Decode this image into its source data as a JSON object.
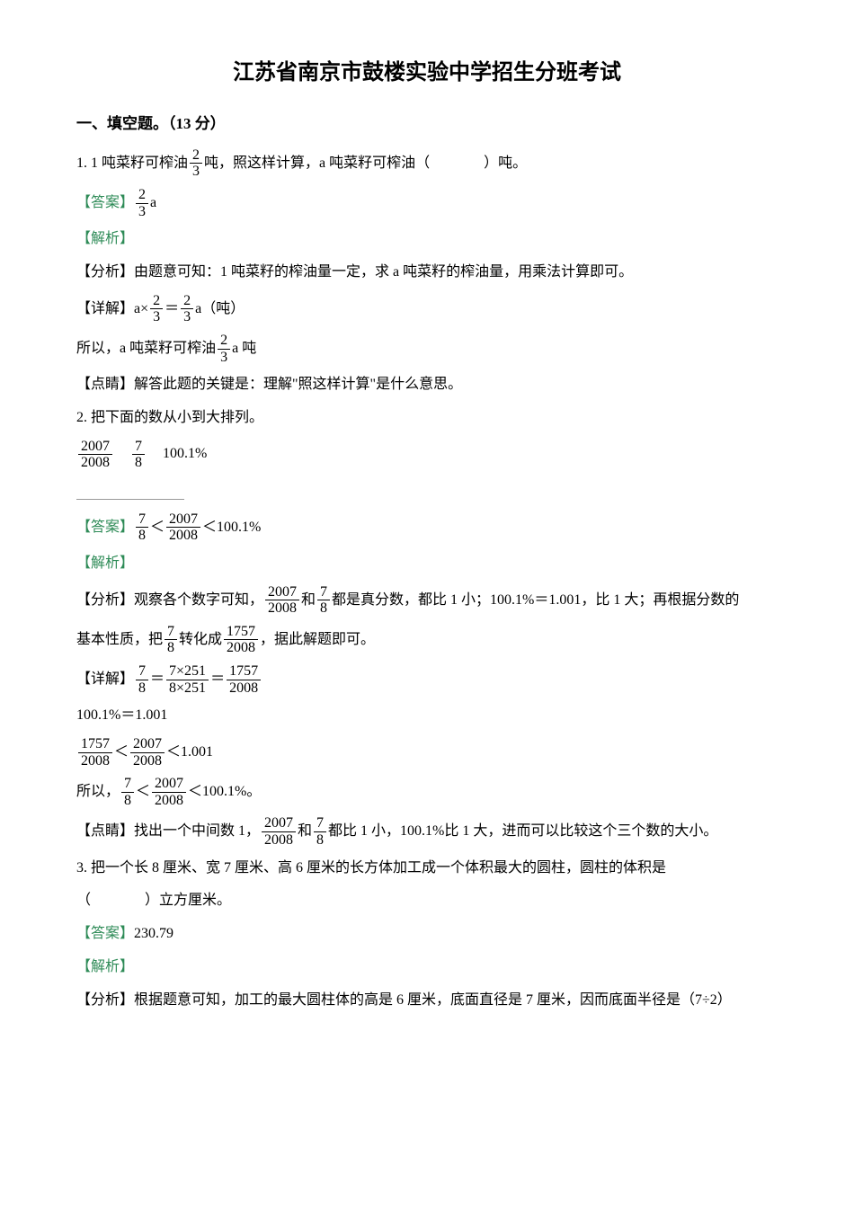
{
  "title": "江苏省南京市鼓楼实验中学招生分班考试",
  "section1": {
    "heading": "一、填空题。（13 分）"
  },
  "q1": {
    "prefix": "1. 1 吨菜籽可榨油",
    "frac_num": "2",
    "frac_den": "3",
    "mid": "吨，照这样计算，a 吨菜籽可榨油（",
    "suffix": "）吨。",
    "answer_label": "【答案】",
    "ans_frac_num": "2",
    "ans_frac_den": "3",
    "ans_suffix": "a",
    "explain_label": "【解析】",
    "analysis_label": "【分析】",
    "analysis_text": "由题意可知：1 吨菜籽的榨油量一定，求 a 吨菜籽的榨油量，用乘法计算即可。",
    "detail_label": "【详解】",
    "detail_prefix": "a×",
    "detail_f1_num": "2",
    "detail_f1_den": "3",
    "detail_eq": "＝",
    "detail_f2_num": "2",
    "detail_f2_den": "3",
    "detail_suffix": "a（吨）",
    "so_prefix": "所以，a 吨菜籽可榨油",
    "so_frac_num": "2",
    "so_frac_den": "3",
    "so_suffix": "a 吨",
    "point_label": "【点睛】",
    "point_text": "解答此题的关键是：理解\"照这样计算\"是什么意思。"
  },
  "q2": {
    "stem": "2. 把下面的数从小到大排列。",
    "n1_num": "2007",
    "n1_den": "2008",
    "n2_num": "7",
    "n2_den": "8",
    "n3": "100.1%",
    "answer_label": "【答案】",
    "ans_f1_num": "7",
    "ans_f1_den": "8",
    "lt1": "＜",
    "ans_f2_num": "2007",
    "ans_f2_den": "2008",
    "lt2": "＜",
    "ans_tail": "100.1%",
    "explain_label": "【解析】",
    "analysis_label": "【分析】",
    "analysis_p1a": "观察各个数字可知，",
    "af1_num": "2007",
    "af1_den": "2008",
    "analysis_and": "和",
    "af2_num": "7",
    "af2_den": "8",
    "analysis_p1b": "都是真分数，都比 1 小；100.1%＝1.001，比 1 大；再根据分数的",
    "analysis_p2a": "基本性质，把",
    "af3_num": "7",
    "af3_den": "8",
    "analysis_p2b": "转化成",
    "af4_num": "1757",
    "af4_den": "2008",
    "analysis_p2c": "，据此解题即可。",
    "detail_label": "【详解】",
    "df1_num": "7",
    "df1_den": "8",
    "deq1": "＝",
    "df2_num": "7×251",
    "df2_den": "8×251",
    "deq2": "＝",
    "df3_num": "1757",
    "df3_den": "2008",
    "pct_line": "100.1%＝1.001",
    "cmp_f1_num": "1757",
    "cmp_f1_den": "2008",
    "cmp_lt1": "＜",
    "cmp_f2_num": "2007",
    "cmp_f2_den": "2008",
    "cmp_lt2": "＜",
    "cmp_tail": "1.001",
    "so_prefix": "所以，",
    "so_f1_num": "7",
    "so_f1_den": "8",
    "so_lt1": "＜",
    "so_f2_num": "2007",
    "so_f2_den": "2008",
    "so_lt2": "＜",
    "so_tail": "100.1%。",
    "point_label": "【点睛】",
    "point_p1a": "找出一个中间数 1，",
    "pf1_num": "2007",
    "pf1_den": "2008",
    "point_and": "和",
    "pf2_num": "7",
    "pf2_den": "8",
    "point_p1b": "都比 1 小，100.1%比 1 大，进而可以比较这个三个数的大小。"
  },
  "q3": {
    "stem_line1": "3. 把一个长 8 厘米、宽 7 厘米、高 6 厘米的长方体加工成一个体积最大的圆柱，圆柱的体积是",
    "stem_line2a": "（",
    "stem_line2b": "）立方厘米。",
    "answer_label": "【答案】",
    "answer_text": "230.79",
    "explain_label": "【解析】",
    "analysis_label": "【分析】",
    "analysis_text": "根据题意可知，加工的最大圆柱体的高是 6 厘米，底面直径是 7 厘米，因而底面半径是（7÷2）"
  }
}
